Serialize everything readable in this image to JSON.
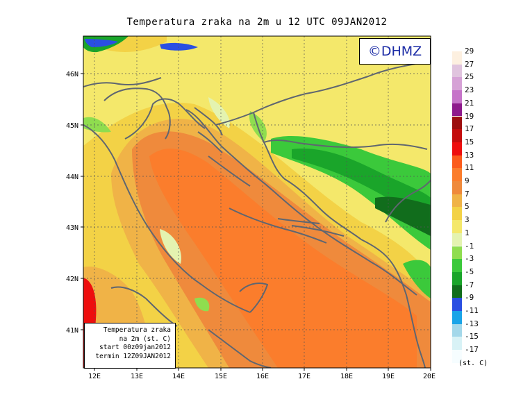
{
  "title": "Temperatura zraka na 2m u 12 UTC 09JAN2012",
  "brand": "©DHMZ",
  "info": {
    "line1": "Temperatura zraka",
    "line2": "na 2m (st. C)",
    "line3": "start 00z09jan2012",
    "line4": "termin 12Z09JAN2012"
  },
  "axes": {
    "lon_labels": [
      "12E",
      "13E",
      "14E",
      "15E",
      "16E",
      "17E",
      "18E",
      "19E",
      "20E"
    ],
    "lat_labels": [
      "46N",
      "45N",
      "44N",
      "43N",
      "42N",
      "41N"
    ]
  },
  "legend": {
    "unit": "(st. C)",
    "levels": [
      {
        "label": "29",
        "color": "#fdf0e0"
      },
      {
        "label": "27",
        "color": "#e0c4de"
      },
      {
        "label": "25",
        "color": "#d6a2d6"
      },
      {
        "label": "23",
        "color": "#c674c9"
      },
      {
        "label": "21",
        "color": "#8e1a8c"
      },
      {
        "label": "19",
        "color": "#9c0f0f"
      },
      {
        "label": "17",
        "color": "#c40d0d"
      },
      {
        "label": "15",
        "color": "#ee0e0e"
      },
      {
        "label": "13",
        "color": "#fb5b1c"
      },
      {
        "label": "11",
        "color": "#fb7d2c"
      },
      {
        "label": "9",
        "color": "#ef8a3c"
      },
      {
        "label": "7",
        "color": "#f0b347"
      },
      {
        "label": "5",
        "color": "#f3d246"
      },
      {
        "label": "3",
        "color": "#f4e86b"
      },
      {
        "label": "1",
        "color": "#e4f3b0"
      },
      {
        "label": "-1",
        "color": "#8fdd4f"
      },
      {
        "label": "-3",
        "color": "#3bc93b"
      },
      {
        "label": "-5",
        "color": "#1aa52a"
      },
      {
        "label": "-7",
        "color": "#116d1c"
      },
      {
        "label": "-9",
        "color": "#2a4fe2"
      },
      {
        "label": "-11",
        "color": "#1aa4e8"
      },
      {
        "label": "-13",
        "color": "#a4d8ea"
      },
      {
        "label": "-15",
        "color": "#d8f2f6"
      },
      {
        "label": "-17",
        "color": "#f6fdff"
      }
    ]
  }
}
